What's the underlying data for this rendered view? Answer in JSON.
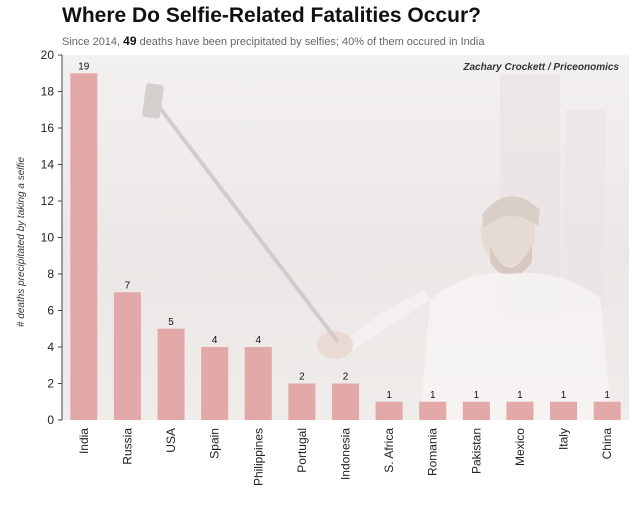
{
  "subtitle": {
    "before": "Since 2014, ",
    "number": "49",
    "after": " deaths have been precipitated by selfies; 40% of them occured in India"
  },
  "colors": {
    "bar": "#e2a9a8",
    "photo_bg": "#efebea"
  },
  "chart_data": {
    "type": "bar",
    "title": "Where Do Selfie-Related Fatalities Occur?",
    "subtitle": "Since 2014, 49 deaths have been precipitated by selfies; 40% of them occured in India",
    "credit": "Zachary Crockett / Priceonomics",
    "xlabel": "",
    "ylabel": "# deaths precipitated by taking a selfie",
    "ylim": [
      0,
      20
    ],
    "yticks": [
      0,
      2,
      4,
      6,
      8,
      10,
      12,
      14,
      16,
      18,
      20
    ],
    "categories": [
      "India",
      "Russia",
      "USA",
      "Spain",
      "Philippines",
      "Portugal",
      "Indonesia",
      "S. Africa",
      "Romania",
      "Pakistan",
      "Mexico",
      "Italy",
      "China"
    ],
    "values": [
      19,
      7,
      5,
      4,
      4,
      2,
      2,
      1,
      1,
      1,
      1,
      1,
      1
    ],
    "data_labels": true,
    "grid": false,
    "background_image": "man-taking-selfie-with-selfie-stick-icon"
  }
}
